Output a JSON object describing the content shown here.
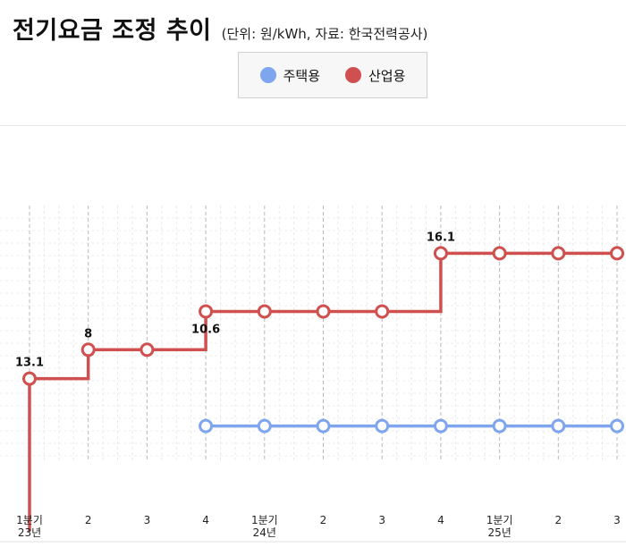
{
  "title": "전기요금 조정 추이",
  "subtitle": "(단위: 원/kWh, 자료: 한국전력공사)",
  "legend": [
    {
      "name": "주택용",
      "color": "#7fa5ef"
    },
    {
      "name": "산업용",
      "color": "#d05050"
    }
  ],
  "chart_data": {
    "type": "line",
    "step": true,
    "categories": [
      "1분기 23년",
      "2",
      "3",
      "4",
      "1분기 24년",
      "2",
      "3",
      "4",
      "1분기 25년",
      "2",
      "3"
    ],
    "tick_labels": [
      [
        "1분기",
        "23년"
      ],
      [
        "2"
      ],
      [
        "3"
      ],
      [
        "4"
      ],
      [
        "1분기",
        "24년"
      ],
      [
        "2"
      ],
      [
        "3"
      ],
      [
        "4"
      ],
      [
        "1분기",
        "25년"
      ],
      [
        "2"
      ],
      [
        "3"
      ]
    ],
    "series": [
      {
        "name": "주택용",
        "color": "#7fa5ef",
        "values": [
          null,
          null,
          null,
          0,
          0,
          0,
          0,
          0,
          0,
          0,
          0
        ]
      },
      {
        "name": "산업용",
        "color": "#d05050",
        "values": [
          13.1,
          21.1,
          21.1,
          31.7,
          31.7,
          31.7,
          31.7,
          47.8,
          47.8,
          47.8,
          47.8
        ]
      }
    ],
    "data_labels": [
      {
        "series": "산업용",
        "index": 0,
        "text": "13.1"
      },
      {
        "series": "산업용",
        "index": 1,
        "text": "8"
      },
      {
        "series": "산업용",
        "index": 3,
        "text": "10.6"
      },
      {
        "series": "산업용",
        "index": 7,
        "text": "16.1"
      }
    ],
    "ylim": [
      -9.5,
      61
    ],
    "grid": true,
    "legend_position": "top-center"
  }
}
